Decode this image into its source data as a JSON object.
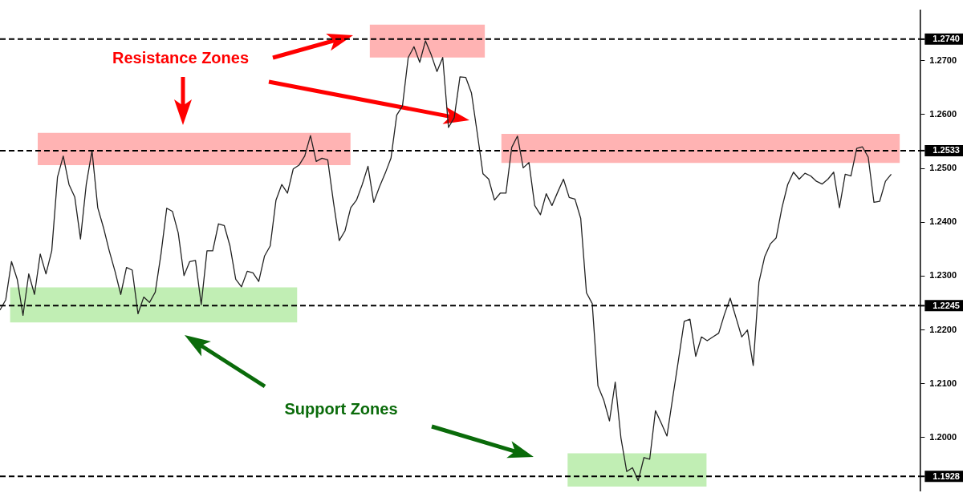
{
  "chart_data": {
    "type": "line",
    "categories": [
      null,
      null,
      null,
      null,
      null,
      null,
      null,
      null,
      null,
      null,
      null,
      null,
      null,
      null,
      null,
      null,
      null,
      null,
      null,
      null,
      null,
      null,
      null,
      null,
      null,
      null,
      null,
      null,
      null,
      null,
      null,
      null,
      null,
      null,
      null,
      null,
      null,
      null,
      null,
      null,
      null,
      null,
      null,
      null,
      null,
      null,
      null,
      null,
      null,
      null,
      null,
      null,
      null,
      null,
      null,
      null,
      null,
      null,
      null,
      null,
      null,
      null,
      null,
      null,
      null,
      null,
      null,
      null,
      null,
      null,
      null,
      null,
      null,
      null,
      null,
      null,
      null,
      null,
      null,
      null,
      null,
      null,
      null,
      null,
      null,
      null,
      null,
      null,
      null,
      null,
      null,
      null,
      null,
      null,
      null,
      null,
      null,
      null,
      null,
      null,
      null,
      null,
      null,
      null,
      null,
      null,
      null,
      null,
      null,
      null,
      null,
      null,
      null,
      null,
      null,
      null,
      null,
      null,
      null,
      null,
      null,
      null,
      null,
      null,
      null,
      null,
      null,
      null,
      null,
      null,
      null,
      null,
      null,
      null,
      null,
      null,
      null,
      null,
      null,
      null,
      null,
      null,
      null,
      null,
      null,
      null,
      null,
      null,
      null,
      null,
      null,
      null,
      null,
      null,
      null,
      null,
      null,
      null,
      null,
      null,
      null
    ],
    "series": [
      {
        "color": "#222222",
        "values": [
          1.2237,
          1.2256,
          1.2327,
          1.2294,
          1.2227,
          1.2304,
          1.2266,
          1.2341,
          1.2304,
          1.2347,
          1.2484,
          1.2523,
          1.247,
          1.2447,
          1.2369,
          1.247,
          1.2533,
          1.2427,
          1.239,
          1.2347,
          1.2309,
          1.2266,
          1.2316,
          1.2311,
          1.223,
          1.2261,
          1.2251,
          1.227,
          1.2341,
          1.2426,
          1.242,
          1.238,
          1.2301,
          1.2327,
          1.2329,
          1.2247,
          1.2347,
          1.2347,
          1.2397,
          1.2394,
          1.2356,
          1.2294,
          1.228,
          1.2309,
          1.2306,
          1.229,
          1.2337,
          1.2356,
          1.2441,
          1.247,
          1.2454,
          1.2499,
          1.2506,
          1.2523,
          1.2561,
          1.2513,
          1.2519,
          1.2516,
          1.2437,
          1.2366,
          1.2384,
          1.2427,
          1.2441,
          1.247,
          1.2504,
          1.2437,
          1.2466,
          1.2491,
          1.2519,
          1.2599,
          1.2616,
          1.2706,
          1.2726,
          1.2697,
          1.2737,
          1.2711,
          1.268,
          1.2706,
          1.2576,
          1.2594,
          1.267,
          1.2669,
          1.264,
          1.2566,
          1.249,
          1.248,
          1.2441,
          1.2454,
          1.2454,
          1.2539,
          1.256,
          1.2501,
          1.2511,
          1.2431,
          1.2414,
          1.2453,
          1.2431,
          1.2456,
          1.248,
          1.2446,
          1.2443,
          1.2407,
          1.2269,
          1.2249,
          1.2096,
          1.207,
          1.2031,
          1.2103,
          1.1999,
          1.1937,
          1.1944,
          1.192,
          1.1963,
          1.196,
          1.205,
          1.2027,
          1.2003,
          1.2074,
          1.2144,
          1.2216,
          1.222,
          1.2151,
          1.2187,
          1.218,
          1.2187,
          1.2194,
          1.2229,
          1.2259,
          1.2223,
          1.2187,
          1.22,
          1.2134,
          1.2289,
          1.2336,
          1.236,
          1.2371,
          1.2427,
          1.247,
          1.2493,
          1.248,
          1.2491,
          1.2486,
          1.2476,
          1.2471,
          1.248,
          1.2493,
          1.2427,
          1.2489,
          1.2486,
          1.2537,
          1.254,
          1.2521,
          1.2437,
          1.2439,
          1.2476,
          1.2489,
          null,
          null,
          null,
          null,
          null
        ]
      }
    ],
    "ylim": [
      1.1901,
      1.2794
    ],
    "yticks": [
      {
        "value": 1.2,
        "label": "1.2000"
      },
      {
        "value": 1.21,
        "label": "1.2100"
      },
      {
        "value": 1.22,
        "label": "1.2200"
      },
      {
        "value": 1.23,
        "label": "1.2300"
      },
      {
        "value": 1.24,
        "label": "1.2400"
      },
      {
        "value": 1.25,
        "label": "1.2500"
      },
      {
        "value": 1.26,
        "label": "1.2600"
      },
      {
        "value": 1.27,
        "label": "1.2700"
      }
    ],
    "tick_labels": "y",
    "grid": false,
    "legend": false,
    "marker": "none",
    "line_style": "solid",
    "ref_lines": [
      {
        "axis": "y",
        "value": 1.274,
        "label": "1.2740",
        "color": "#000000",
        "line_style": "dashed"
      },
      {
        "axis": "y",
        "value": 1.2533,
        "label": "1.2533",
        "color": "#000000",
        "line_style": "dashed"
      },
      {
        "axis": "y",
        "value": 1.2245,
        "label": "1.2245",
        "color": "#000000",
        "line_style": "dashed"
      },
      {
        "axis": "y",
        "value": 1.1928,
        "label": "1.1928",
        "color": "#000000",
        "line_style": "dashed"
      }
    ],
    "bands": [
      {
        "axis": "y",
        "from": 1.2506,
        "to": 1.2566,
        "color": "#ffb3b3"
      },
      {
        "axis": "y",
        "from": 1.2706,
        "to": 1.2767,
        "color": "#ffb3b3"
      },
      {
        "axis": "y",
        "from": 1.251,
        "to": 1.2564,
        "color": "#ffb3b3"
      },
      {
        "axis": "y",
        "from": 1.2214,
        "to": 1.2279,
        "color": "#c1eeb4"
      },
      {
        "axis": "y",
        "from": 1.1909,
        "to": 1.1971,
        "color": "#c1eeb4"
      }
    ],
    "annotations": [
      "Resistance Zones",
      "Support Zones"
    ]
  }
}
